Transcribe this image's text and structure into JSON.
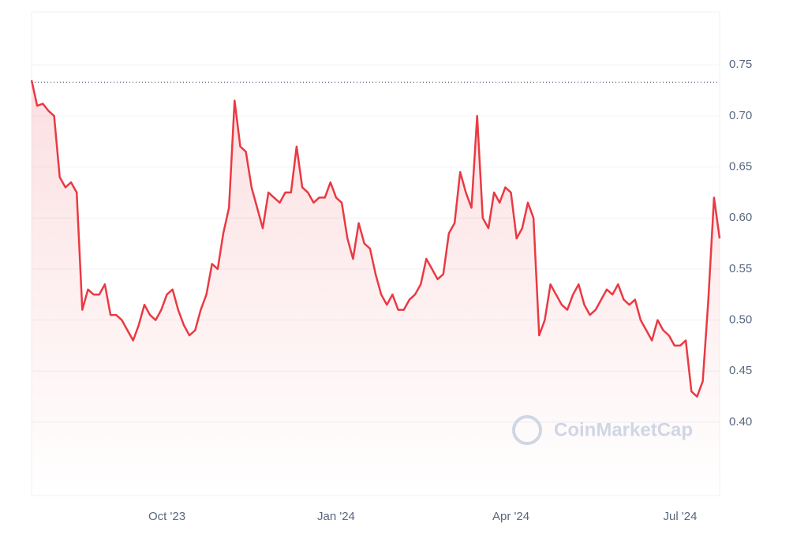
{
  "chart_data": {
    "type": "line",
    "categories": [
      null,
      null,
      null,
      null,
      null,
      null,
      null,
      null,
      null,
      null,
      null,
      null,
      null,
      null,
      null,
      null,
      null,
      null,
      null,
      null,
      null,
      null,
      null,
      null,
      "Oct '23",
      null,
      null,
      null,
      null,
      null,
      null,
      null,
      null,
      null,
      null,
      null,
      null,
      null,
      null,
      null,
      null,
      null,
      null,
      null,
      null,
      null,
      null,
      null,
      null,
      null,
      null,
      null,
      null,
      null,
      "Jan '24",
      null,
      null,
      null,
      null,
      null,
      null,
      null,
      null,
      null,
      null,
      null,
      null,
      null,
      null,
      null,
      null,
      null,
      null,
      null,
      null,
      null,
      null,
      null,
      null,
      null,
      null,
      null,
      null,
      null,
      null,
      "Apr '24",
      null,
      null,
      null,
      null,
      null,
      null,
      null,
      null,
      null,
      null,
      null,
      null,
      null,
      null,
      null,
      null,
      null,
      null,
      null,
      null,
      null,
      null,
      null,
      null,
      null,
      null,
      null,
      null,
      null,
      "Jul '24",
      null,
      null,
      null,
      null,
      null,
      null,
      null
    ],
    "series": [
      {
        "color": "#ea3943",
        "values": [
          0.735,
          0.71,
          0.712,
          0.705,
          0.7,
          0.64,
          0.63,
          0.635,
          0.625,
          0.51,
          0.53,
          0.525,
          0.525,
          0.535,
          0.505,
          0.505,
          0.5,
          0.49,
          0.48,
          0.495,
          0.515,
          0.505,
          0.5,
          0.51,
          0.525,
          0.53,
          0.51,
          0.495,
          0.485,
          0.49,
          0.51,
          0.525,
          0.555,
          0.55,
          0.585,
          0.61,
          0.715,
          0.67,
          0.665,
          0.63,
          0.61,
          0.59,
          0.625,
          0.62,
          0.615,
          0.625,
          0.625,
          0.67,
          0.63,
          0.625,
          0.615,
          0.62,
          0.62,
          0.635,
          0.62,
          0.615,
          0.58,
          0.56,
          0.595,
          0.575,
          0.57,
          0.545,
          0.525,
          0.515,
          0.525,
          0.51,
          0.51,
          0.52,
          0.525,
          0.535,
          0.56,
          0.55,
          0.54,
          0.545,
          0.585,
          0.595,
          0.645,
          0.625,
          0.61,
          0.7,
          0.6,
          0.59,
          0.625,
          0.615,
          0.63,
          0.625,
          0.58,
          0.59,
          0.615,
          0.6,
          0.485,
          0.5,
          0.535,
          0.525,
          0.515,
          0.51,
          0.525,
          0.535,
          0.515,
          0.505,
          0.51,
          0.52,
          0.53,
          0.525,
          0.535,
          0.52,
          0.515,
          0.52,
          0.5,
          0.49,
          0.48,
          0.5,
          0.49,
          0.485,
          0.475,
          0.475,
          0.48,
          0.43,
          0.425,
          0.44,
          0.52,
          0.62,
          0.58
        ]
      }
    ],
    "reference_line": 0.733,
    "ylim": [
      0.328,
      0.802
    ],
    "yticks": [
      {
        "value": 0.4,
        "label": "0.40"
      },
      {
        "value": 0.45,
        "label": "0.45"
      },
      {
        "value": 0.5,
        "label": "0.50"
      },
      {
        "value": 0.55,
        "label": "0.55"
      },
      {
        "value": 0.6,
        "label": "0.60"
      },
      {
        "value": 0.65,
        "label": "0.65"
      },
      {
        "value": 0.7,
        "label": "0.70"
      },
      {
        "value": 0.75,
        "label": "0.75"
      }
    ],
    "grid": true,
    "watermark": "CoinMarketCap"
  }
}
